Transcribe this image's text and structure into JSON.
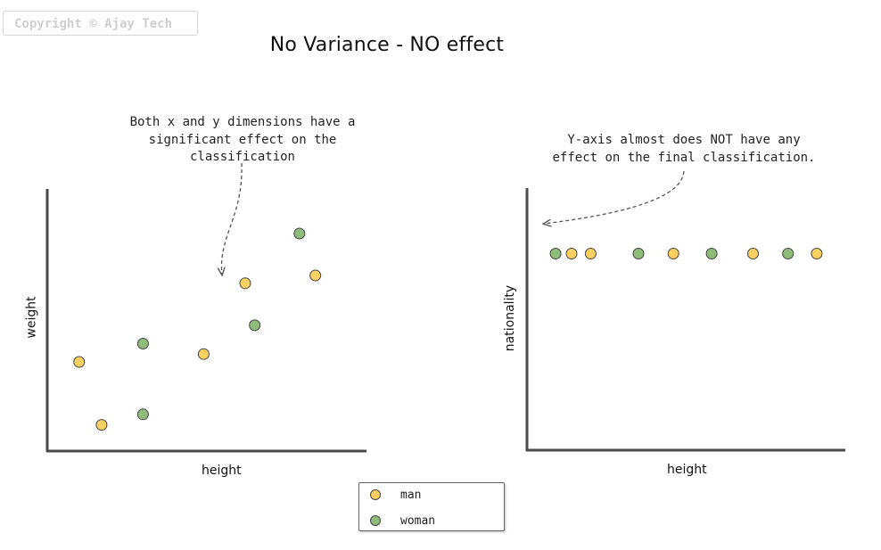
{
  "copyright": "Copyright © Ajay Tech",
  "title": "No Variance - NO effect",
  "colors": {
    "man": "#f9d162",
    "woman": "#8fbc7b",
    "axis": "#4a4a4a",
    "arrow": "#555555"
  },
  "annotations": {
    "left": "Both x and y dimensions have a significant effect on the classification",
    "right": "Y-axis almost does NOT have any effect on the final classification."
  },
  "legend": {
    "man": "man",
    "woman": "woman"
  },
  "chart_data": [
    {
      "type": "scatter",
      "xlabel": "height",
      "ylabel": "weight",
      "xlim": [
        0,
        100
      ],
      "ylim": [
        0,
        100
      ],
      "series": [
        {
          "name": "man",
          "points": [
            [
              10,
              34
            ],
            [
              17,
              10
            ],
            [
              49,
              37
            ],
            [
              62,
              64
            ],
            [
              84,
              67
            ]
          ]
        },
        {
          "name": "woman",
          "points": [
            [
              30,
              41
            ],
            [
              30,
              14
            ],
            [
              65,
              48
            ],
            [
              79,
              83
            ]
          ]
        }
      ]
    },
    {
      "type": "scatter",
      "xlabel": "height",
      "ylabel": "nationality",
      "xlim": [
        0,
        100
      ],
      "ylim": [
        0,
        100
      ],
      "series": [
        {
          "name": "man",
          "points": [
            [
              14,
              75
            ],
            [
              20,
              75
            ],
            [
              46,
              75
            ],
            [
              71,
              75
            ],
            [
              91,
              75
            ]
          ]
        },
        {
          "name": "woman",
          "points": [
            [
              9,
              75
            ],
            [
              35,
              75
            ],
            [
              58,
              75
            ],
            [
              82,
              75
            ]
          ]
        }
      ]
    }
  ]
}
